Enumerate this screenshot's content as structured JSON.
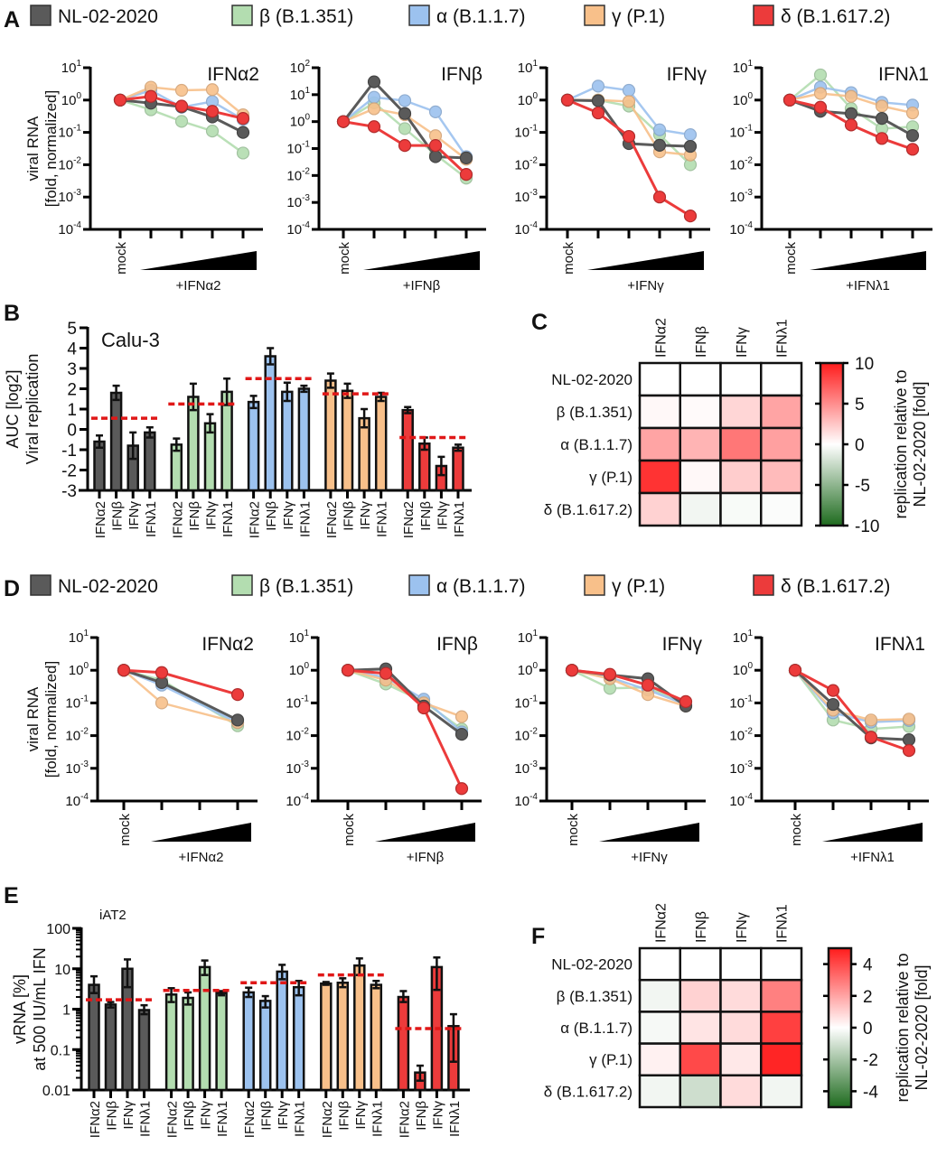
{
  "figure": {
    "panel_letters": [
      "A",
      "B",
      "C",
      "D",
      "E",
      "F"
    ]
  },
  "legend": {
    "items": [
      {
        "name": "NL-02-2020",
        "color": "#5a5a5a"
      },
      {
        "name": "β (B.1.351)",
        "color": "#b3ddb0"
      },
      {
        "name": "α (B.1.1.7)",
        "color": "#9cc2ef"
      },
      {
        "name": "γ (P.1)",
        "color": "#f8c08a"
      },
      {
        "name": "δ (B.1.617.2)",
        "color": "#ec3b3b"
      }
    ]
  },
  "chart_data": [
    {
      "panel": "A",
      "type": "line",
      "title": "IFNα2",
      "mock_label": "mock",
      "xlabel": "+IFNα2",
      "yscale": "log",
      "ylim": [
        0.0001,
        10
      ],
      "ylabel": [
        "viral RNA",
        "[fold, normalized]"
      ],
      "series": [
        [
          1,
          0.8,
          0.62,
          0.3,
          0.1
        ],
        [
          1,
          0.5,
          0.22,
          0.11,
          0.023
        ],
        [
          1,
          2.0,
          0.6,
          0.9,
          0.25
        ],
        [
          1,
          2.5,
          2.0,
          2.1,
          0.35
        ],
        [
          1,
          1.3,
          0.65,
          0.45,
          0.27
        ]
      ]
    },
    {
      "panel": "A",
      "type": "line",
      "title": "IFNβ",
      "mock_label": "mock",
      "xlabel": "+IFNβ",
      "yscale": "log",
      "ylim": [
        0.0001,
        100
      ],
      "series": [
        [
          1,
          30,
          2,
          0.05,
          0.045
        ],
        [
          1,
          5,
          0.55,
          0.06,
          0.008
        ],
        [
          1,
          8,
          6,
          2.3,
          0.05
        ],
        [
          1,
          3,
          1.8,
          0.3,
          0.04
        ],
        [
          1,
          0.65,
          0.13,
          0.13,
          0.011
        ]
      ]
    },
    {
      "panel": "A",
      "type": "line",
      "title": "IFNγ",
      "mock_label": "mock",
      "xlabel": "+IFNγ",
      "yscale": "log",
      "ylim": [
        0.0001,
        10
      ],
      "series": [
        [
          1,
          0.95,
          0.045,
          0.04,
          0.037
        ],
        [
          1,
          1.0,
          0.65,
          0.085,
          0.01
        ],
        [
          1,
          2.7,
          2.0,
          0.12,
          0.085
        ],
        [
          1,
          1.0,
          0.9,
          0.025,
          0.02
        ],
        [
          1,
          0.4,
          0.075,
          0.001,
          0.00026
        ]
      ]
    },
    {
      "panel": "A",
      "type": "line",
      "title": "IFNλ1",
      "mock_label": "mock",
      "xlabel": "+IFNλ1",
      "yscale": "log",
      "ylim": [
        0.0001,
        10
      ],
      "series": [
        [
          1,
          0.45,
          0.38,
          0.27,
          0.08
        ],
        [
          1,
          6,
          0.55,
          0.13,
          0.15
        ],
        [
          1,
          2.5,
          1.7,
          0.85,
          0.7
        ],
        [
          1,
          1.6,
          1.3,
          0.65,
          0.4
        ],
        [
          1,
          0.6,
          0.17,
          0.065,
          0.03
        ]
      ]
    },
    {
      "panel": "B",
      "type": "bar",
      "subtitle": "Calu-3",
      "ylabel": [
        "AUC [log2]",
        "Viral replication"
      ],
      "ylim": [
        -3,
        5
      ],
      "yticks": [
        5,
        4,
        3,
        2,
        1,
        0,
        -1,
        -2,
        -3
      ],
      "categories": [
        "IFNα2",
        "IFNβ",
        "IFNγ",
        "IFNλ1"
      ],
      "groups": [
        {
          "values": [
            -0.6,
            1.8,
            -0.8,
            -0.15
          ],
          "err": [
            0.3,
            0.35,
            0.65,
            0.25
          ],
          "mean": 0.55
        },
        {
          "values": [
            -0.75,
            1.6,
            0.3,
            1.85
          ],
          "err": [
            0.3,
            0.65,
            0.45,
            0.65
          ],
          "mean": 1.25
        },
        {
          "values": [
            1.35,
            3.6,
            1.85,
            2.0
          ],
          "err": [
            0.3,
            0.4,
            0.45,
            0.15
          ],
          "mean": 2.5
        },
        {
          "values": [
            2.4,
            1.9,
            0.55,
            1.6
          ],
          "err": [
            0.35,
            0.35,
            0.45,
            0.2
          ],
          "mean": 1.75
        },
        {
          "values": [
            0.95,
            -0.7,
            -1.8,
            -0.9
          ],
          "err": [
            0.15,
            0.3,
            0.45,
            0.15
          ],
          "mean": -0.4
        }
      ]
    },
    {
      "panel": "C",
      "type": "heatmap",
      "columns": [
        "IFNα2",
        "IFNβ",
        "IFNγ",
        "IFNλ1"
      ],
      "rows": [
        "NL-02-2020",
        "β (B.1.351)",
        "α (B.1.1.7)",
        "γ (P.1)",
        "δ (B.1.617.2)"
      ],
      "values": [
        [
          0,
          0,
          0,
          0
        ],
        [
          0.3,
          0.2,
          1.8,
          4
        ],
        [
          4,
          3.3,
          6,
          4.2
        ],
        [
          9,
          0.3,
          2.2,
          3
        ],
        [
          2,
          -0.6,
          -0.3,
          -0.2
        ]
      ],
      "colorbar": {
        "range": [
          -10,
          10
        ],
        "ticks": [
          10,
          5,
          0,
          -5,
          -10
        ],
        "label": [
          "replication relative to",
          "NL-02-2020 [fold]"
        ],
        "low_color": "#1e6b1e",
        "mid_color": "#ffffff",
        "high_color": "#ff1c1c"
      }
    },
    {
      "panel": "D",
      "type": "line",
      "title": "IFNα2",
      "mock_label": "mock",
      "xlabel": "+IFNα2",
      "yscale": "log",
      "ylim": [
        0.0001,
        10
      ],
      "ylabel": [
        "viral RNA",
        "[fold, normalized]"
      ],
      "series": [
        [
          1,
          0.42,
          null,
          0.03
        ],
        [
          1,
          0.5,
          null,
          0.02
        ],
        [
          1,
          0.35,
          null,
          0.025
        ],
        [
          1,
          0.1,
          null,
          0.025
        ],
        [
          1,
          0.85,
          null,
          0.18
        ]
      ]
    },
    {
      "panel": "D",
      "type": "line",
      "title": "IFNβ",
      "mock_label": "mock",
      "xlabel": "+IFNβ",
      "yscale": "log",
      "ylim": [
        0.0001,
        10
      ],
      "series": [
        [
          1,
          1.1,
          0.08,
          0.011
        ],
        [
          1,
          0.38,
          0.11,
          0.016
        ],
        [
          1,
          0.6,
          0.13,
          0.013
        ],
        [
          1,
          0.5,
          0.1,
          0.038
        ],
        [
          1,
          0.8,
          0.07,
          0.00024
        ]
      ]
    },
    {
      "panel": "D",
      "type": "line",
      "title": "IFNγ",
      "mock_label": "mock",
      "xlabel": "+IFNγ",
      "yscale": "log",
      "ylim": [
        0.0001,
        10
      ],
      "series": [
        [
          1,
          0.72,
          0.55,
          0.08
        ],
        [
          1,
          0.28,
          0.3,
          0.09
        ],
        [
          1,
          0.6,
          0.25,
          0.09
        ],
        [
          1,
          0.55,
          0.18,
          0.08
        ],
        [
          1,
          0.75,
          0.35,
          0.11
        ]
      ]
    },
    {
      "panel": "D",
      "type": "line",
      "title": "IFNλ1",
      "mock_label": "mock",
      "xlabel": "+IFNλ1",
      "yscale": "log",
      "ylim": [
        0.0001,
        10
      ],
      "series": [
        [
          1,
          0.09,
          0.0085,
          0.0075
        ],
        [
          1,
          0.03,
          0.016,
          0.019
        ],
        [
          1,
          0.05,
          0.026,
          0.029
        ],
        [
          1,
          0.06,
          0.03,
          0.032
        ],
        [
          1,
          0.24,
          0.009,
          0.0035
        ]
      ]
    },
    {
      "panel": "E",
      "type": "bar",
      "subtitle": "iAT2",
      "ylabel": [
        "vRNA [%]",
        "at 500 IU/mL IFN"
      ],
      "yscale": "log",
      "ylim": [
        0.01,
        100
      ],
      "yticks": [
        "100",
        "10",
        "1",
        "0.1",
        "0.01"
      ],
      "categories": [
        "IFNα2",
        "IFNβ",
        "IFNγ",
        "IFNλ1"
      ],
      "groups": [
        {
          "values": [
            4,
            1.3,
            10,
            0.95
          ],
          "err_low": [
            2.5,
            1.1,
            3.5,
            0.75
          ],
          "err_high": [
            6.5,
            1.5,
            17,
            1.25
          ],
          "mean": 1.7
        },
        {
          "values": [
            2.3,
            1.9,
            11,
            2.5
          ],
          "err_low": [
            1.5,
            1.3,
            7,
            2.2
          ],
          "err_high": [
            3.3,
            2.6,
            16,
            2.8
          ],
          "mean": 2.9
        },
        {
          "values": [
            2.6,
            1.6,
            8.5,
            3.5
          ],
          "err_low": [
            2,
            1.1,
            5.5,
            2.2
          ],
          "err_high": [
            3.4,
            2.1,
            12.5,
            5
          ],
          "mean": 4.5
        },
        {
          "values": [
            4.3,
            4.5,
            12,
            4.0
          ],
          "err_low": [
            4,
            3.5,
            7,
            3.3
          ],
          "err_high": [
            4.7,
            5.8,
            18,
            5
          ],
          "mean": 7
        },
        {
          "values": [
            2.0,
            0.027,
            11,
            0.38
          ],
          "err_low": [
            1.5,
            0.017,
            3,
            0.05
          ],
          "err_high": [
            2.8,
            0.04,
            19,
            0.75
          ],
          "mean": 0.33
        }
      ]
    },
    {
      "panel": "F",
      "type": "heatmap",
      "columns": [
        "IFNα2",
        "IFNβ",
        "IFNγ",
        "IFNλ1"
      ],
      "rows": [
        "NL-02-2020",
        "β (B.1.351)",
        "α (B.1.1.7)",
        "γ (P.1)",
        "δ (B.1.617.2)"
      ],
      "values": [
        [
          0,
          0,
          0,
          0
        ],
        [
          -0.3,
          1.0,
          0.8,
          2.8
        ],
        [
          -0.2,
          0.6,
          0.8,
          4.2
        ],
        [
          0.3,
          4.0,
          0.5,
          4.8
        ],
        [
          -0.3,
          -1.1,
          0.8,
          -0.3
        ]
      ],
      "colorbar": {
        "range": [
          -5,
          5
        ],
        "ticks": [
          4,
          2,
          0,
          -2,
          -4
        ],
        "label": [
          "replication relative to",
          "NL-02-2020 [fold]"
        ],
        "low_color": "#1e6b1e",
        "mid_color": "#ffffff",
        "high_color": "#ff1c1c"
      }
    }
  ]
}
